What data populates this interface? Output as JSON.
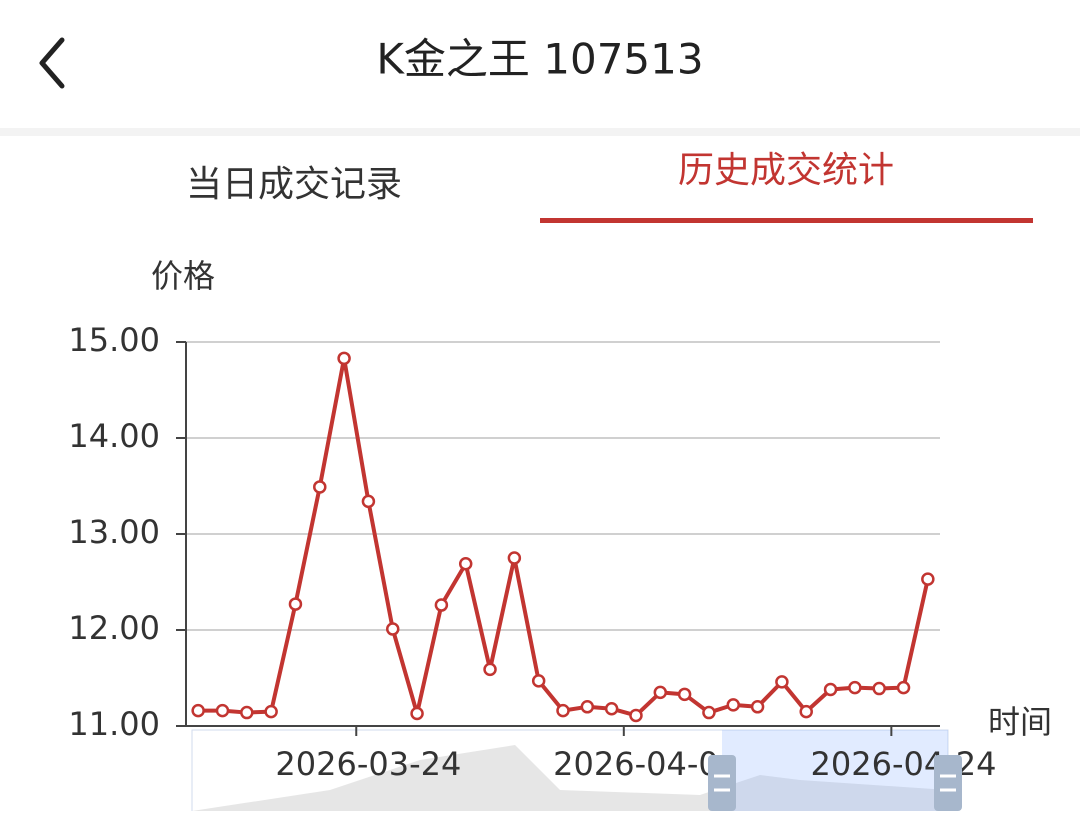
{
  "header": {
    "title": "K金之王 107513"
  },
  "tabs": [
    "当日成交记录",
    "历史成交统计"
  ],
  "chart_data": {
    "type": "line",
    "y_label": "价格",
    "x_label": "时间",
    "categories": [
      null,
      null,
      null,
      null,
      null,
      null,
      null,
      "2026-03-24",
      null,
      null,
      null,
      null,
      null,
      null,
      null,
      null,
      null,
      null,
      "2026-04-0",
      null,
      null,
      null,
      null,
      null,
      null,
      null,
      null,
      null,
      null,
      "2026-04-24",
      null
    ],
    "values": [
      11.16,
      11.16,
      11.14,
      11.15,
      12.27,
      13.49,
      14.83,
      13.34,
      12.01,
      11.13,
      12.26,
      12.69,
      11.59,
      12.75,
      11.47,
      11.16,
      11.2,
      11.18,
      11.11,
      11.35,
      11.33,
      11.14,
      11.22,
      11.2,
      11.46,
      11.15,
      11.38,
      11.4,
      11.39,
      11.4,
      12.53
    ],
    "color": "#c23531",
    "ylim": [
      11,
      15
    ],
    "yticks": [
      {
        "value": 11,
        "label": "11.00"
      },
      {
        "value": 12,
        "label": "12.00"
      },
      {
        "value": 13,
        "label": "13.00"
      },
      {
        "value": 14,
        "label": "14.00"
      },
      {
        "value": 15,
        "label": "15.00"
      }
    ],
    "grid": true
  }
}
